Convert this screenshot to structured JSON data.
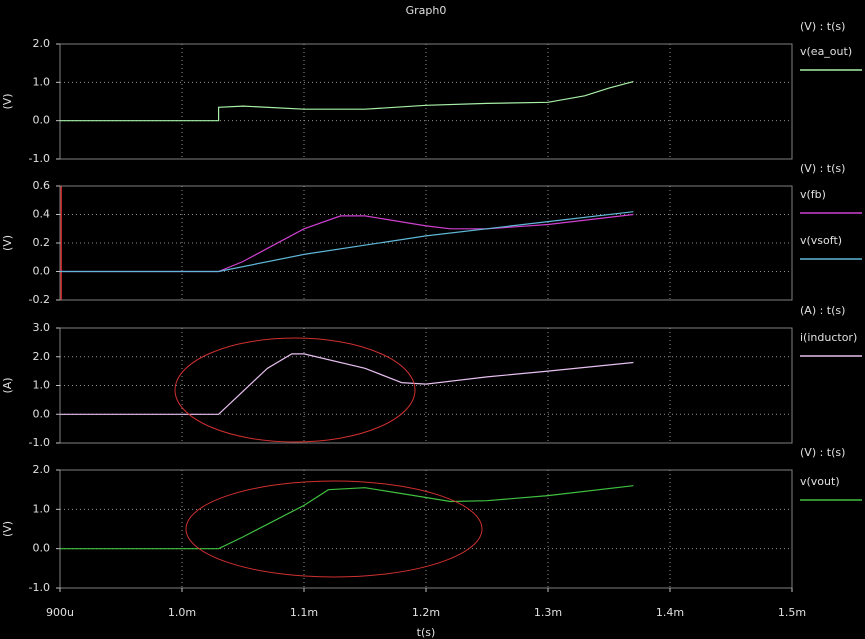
{
  "chart_data": [
    {
      "type": "line",
      "title": "Graph0",
      "axis_label": "(V)",
      "header": "(V) : t(s)",
      "xlim": [
        0.0009,
        0.0015
      ],
      "ylim": [
        -1,
        2
      ],
      "grid": true,
      "yticks": [
        {
          "value": 2,
          "label": "2.0"
        },
        {
          "value": 1,
          "label": "1.0"
        },
        {
          "value": 0,
          "label": "0.0"
        },
        {
          "value": -1,
          "label": "-1.0"
        }
      ],
      "series": [
        {
          "name": "v(ea_out)",
          "color": "#a8f0a8",
          "x": [
            0.0009,
            0.00103,
            0.00103,
            0.00105,
            0.0011,
            0.00115,
            0.0012,
            0.00125,
            0.0013,
            0.00133,
            0.00135,
            0.00137
          ],
          "values": [
            0,
            0,
            0.35,
            0.38,
            0.3,
            0.3,
            0.4,
            0.45,
            0.48,
            0.65,
            0.85,
            1.02
          ]
        }
      ]
    },
    {
      "type": "line",
      "axis_label": "(V)",
      "header": "(V) : t(s)",
      "xlim": [
        0.0009,
        0.0015
      ],
      "ylim": [
        -0.2,
        0.6
      ],
      "grid": true,
      "yticks": [
        0.6,
        0.4,
        0.2,
        {
          "value": 0,
          "label": "0.0"
        },
        -0.2
      ],
      "series": [
        {
          "name": "v(fb)",
          "color": "#d040d0",
          "x": [
            0.0009,
            0.00103,
            0.00105,
            0.0011,
            0.00113,
            0.00115,
            0.0012,
            0.00122,
            0.00125,
            0.0013,
            0.00137
          ],
          "values": [
            0,
            0,
            0.07,
            0.3,
            0.39,
            0.39,
            0.32,
            0.3,
            0.3,
            0.33,
            0.4
          ]
        },
        {
          "name": "v(vsoft)",
          "color": "#60b8d8",
          "x": [
            0.0009,
            0.00103,
            0.0011,
            0.0012,
            0.0013,
            0.00137
          ],
          "values": [
            0,
            0,
            0.12,
            0.25,
            0.35,
            0.42
          ]
        }
      ]
    },
    {
      "type": "line",
      "axis_label": "(A)",
      "header": "(A) : t(s)",
      "xlim": [
        0.0009,
        0.0015
      ],
      "ylim": [
        -1,
        3
      ],
      "grid": true,
      "yticks": [
        {
          "value": 3,
          "label": "3.0"
        },
        {
          "value": 2,
          "label": "2.0"
        },
        {
          "value": 1,
          "label": "1.0"
        },
        {
          "value": 0,
          "label": "0.0"
        },
        {
          "value": -1,
          "label": "-1.0"
        }
      ],
      "series": [
        {
          "name": "i(inductor)",
          "color": "#e8c0f0",
          "x": [
            0.0009,
            0.00103,
            0.00105,
            0.00107,
            0.00109,
            0.0011,
            0.00115,
            0.00118,
            0.0012,
            0.00125,
            0.0013,
            0.00137
          ],
          "values": [
            0,
            0,
            0.8,
            1.6,
            2.1,
            2.1,
            1.6,
            1.1,
            1.05,
            1.3,
            1.5,
            1.8
          ]
        }
      ]
    },
    {
      "type": "line",
      "axis_label": "(V)",
      "header": "(V) : t(s)",
      "xlabel": "t(s)",
      "xlim": [
        0.0009,
        0.0015
      ],
      "ylim": [
        -1,
        2
      ],
      "grid": true,
      "xticks": [
        {
          "value": 0.0009,
          "label": "900u"
        },
        {
          "value": 0.001,
          "label": "1.0m"
        },
        {
          "value": 0.0011,
          "label": "1.1m"
        },
        {
          "value": 0.0012,
          "label": "1.2m"
        },
        {
          "value": 0.0013,
          "label": "1.3m"
        },
        {
          "value": 0.0014,
          "label": "1.4m"
        },
        {
          "value": 0.0015,
          "label": "1.5m"
        }
      ],
      "yticks": [
        {
          "value": 2,
          "label": "2.0"
        },
        {
          "value": 1,
          "label": "1.0"
        },
        {
          "value": 0,
          "label": "0.0"
        },
        {
          "value": -1,
          "label": "-1.0"
        }
      ],
      "series": [
        {
          "name": "v(vout)",
          "color": "#40c040",
          "x": [
            0.0009,
            0.00103,
            0.00105,
            0.0011,
            0.00112,
            0.00115,
            0.0012,
            0.00122,
            0.00125,
            0.0013,
            0.00137
          ],
          "values": [
            0,
            0,
            0.3,
            1.1,
            1.5,
            1.55,
            1.3,
            1.2,
            1.22,
            1.35,
            1.6
          ]
        }
      ]
    }
  ]
}
